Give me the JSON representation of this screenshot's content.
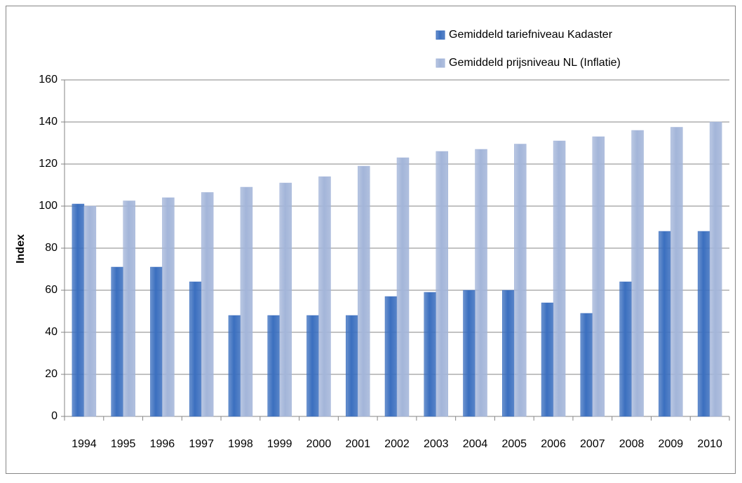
{
  "chart_data": {
    "type": "bar",
    "y_label": "Index",
    "categories": [
      "1994",
      "1995",
      "1996",
      "1997",
      "1998",
      "1999",
      "2000",
      "2001",
      "2002",
      "2003",
      "2004",
      "2005",
      "2006",
      "2007",
      "2008",
      "2009",
      "2010"
    ],
    "series": [
      {
        "name": "Gemiddeld tariefniveau Kadaster",
        "color": "#3b6fbf",
        "values": [
          101,
          71,
          71,
          64,
          48,
          48,
          48,
          48,
          57,
          59,
          60,
          60,
          54,
          49,
          64,
          88,
          88
        ]
      },
      {
        "name": "Gemiddeld prijsniveau NL (Inflatie)",
        "color": "#a3b5d9",
        "values": [
          100,
          102.5,
          104,
          106.5,
          109,
          111,
          114,
          119,
          123,
          126,
          127,
          129.5,
          131,
          133,
          136,
          137.5,
          140
        ]
      }
    ],
    "ylim": [
      0,
      160
    ],
    "yticks": [
      0,
      20,
      40,
      60,
      80,
      100,
      120,
      140,
      160
    ],
    "grid": true,
    "legend": "top-right"
  }
}
